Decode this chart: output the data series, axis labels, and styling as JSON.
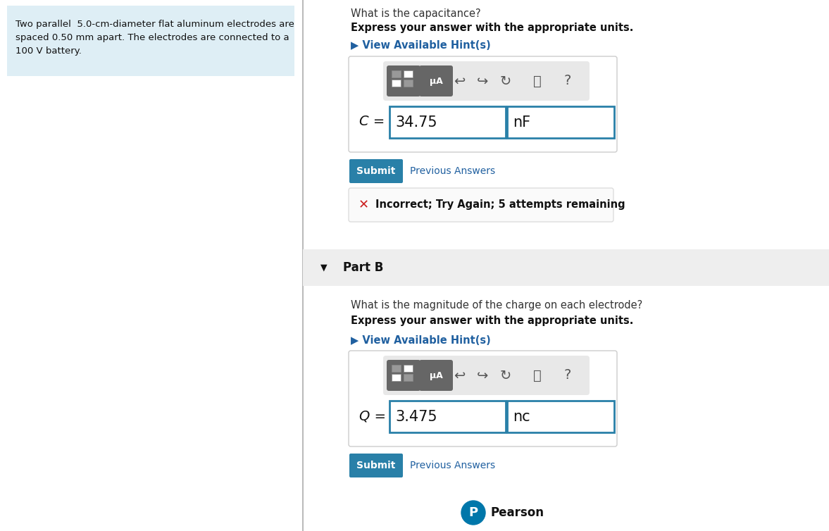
{
  "bg_color": "#ffffff",
  "left_panel_bg": "#deeef5",
  "left_panel_text_line1": "Two parallel  5.0-cm-diameter flat aluminum electrodes are",
  "left_panel_text_line2": "spaced 0.50 mm apart. The electrodes are connected to a",
  "left_panel_text_line3": "100 V battery.",
  "part_a_title": "What is the capacitance?",
  "part_a_subtitle": "Express your answer with the appropriate units.",
  "hint_text": "View Available Hint(s)",
  "part_a_var": "C =",
  "part_a_value": "34.75",
  "part_a_unit": "nF",
  "submit_text": "Submit",
  "prev_answers_text": "Previous Answers",
  "incorrect_text": "Incorrect; Try Again; 5 attempts remaining",
  "part_b_header": "Part B",
  "part_b_title": "What is the magnitude of the charge on each electrode?",
  "part_b_subtitle": "Express your answer with the appropriate units.",
  "part_b_var": "Q =",
  "part_b_value": "3.475",
  "part_b_unit": "nc",
  "pearson_text": "Pearson",
  "submit_bg": "#2980a8",
  "hint_color": "#2060a0",
  "x_color": "#cc2222",
  "partb_bg": "#eeeeee",
  "input_border": "#2980a8",
  "divider_color": "#bbbbbb",
  "toolbar_bg": "#e8e8e8",
  "btn_bg": "#666666",
  "box_border": "#cccccc",
  "inc_bg": "#fafafa",
  "pearson_blue": "#0077aa",
  "text_normal": "#333333",
  "text_dark": "#111111"
}
